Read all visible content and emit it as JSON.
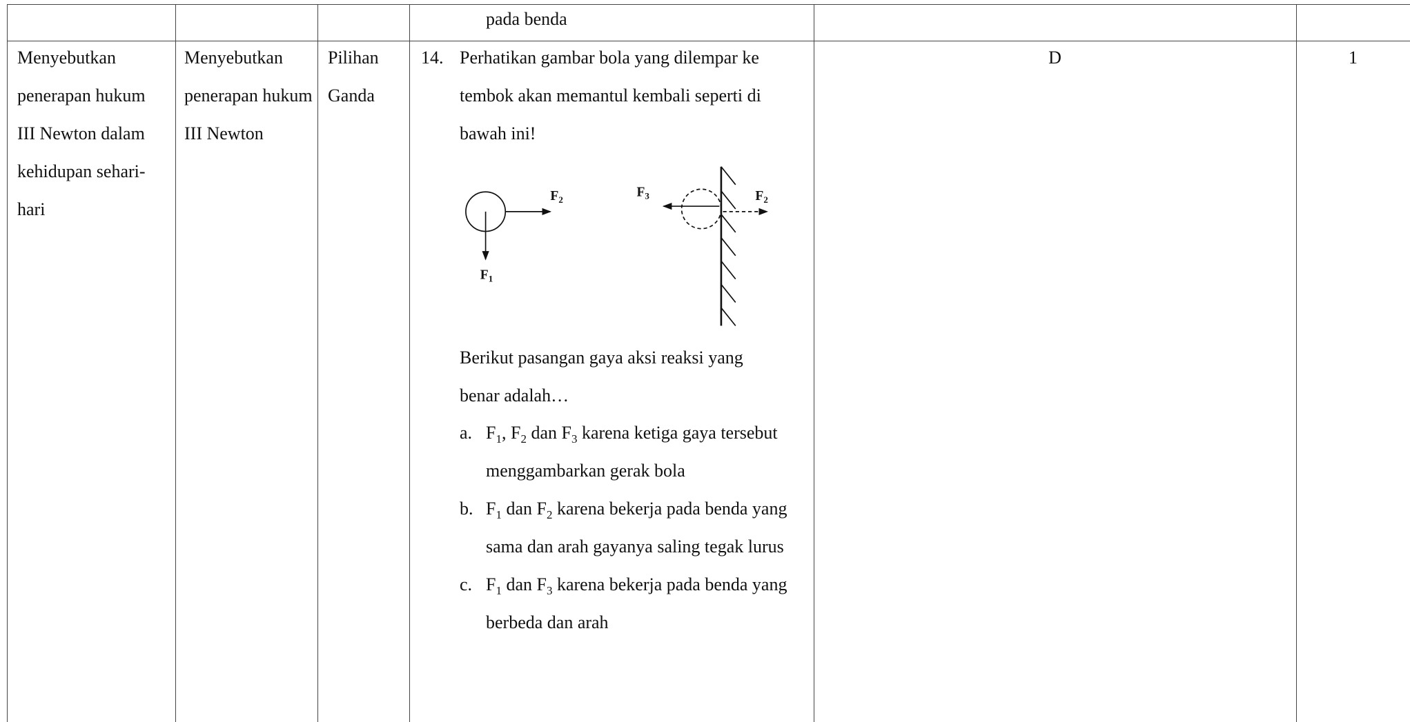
{
  "table": {
    "continuation": "pada benda",
    "row": {
      "objective": "Menyebutkan penerapan hukum III Newton dalam kehidupan sehari-hari",
      "indicator": "Menyebutkan penerapan hukum III Newton",
      "form": "Pilihan Ganda",
      "number": "14.",
      "stem": "Perhatikan gambar bola yang dilempar ke tembok akan memantul kembali seperti di bawah ini!",
      "figure": {
        "labels": [
          {
            "letter": "F",
            "sub": "2"
          },
          {
            "letter": "F",
            "sub": "1"
          },
          {
            "letter": "F",
            "sub": "3"
          },
          {
            "letter": "F",
            "sub": "2"
          }
        ]
      },
      "prompt": "Berikut pasangan gaya aksi reaksi yang benar adalah…",
      "options": [
        {
          "marker": "a.",
          "parts": [
            "F",
            "1",
            ", F",
            "2",
            " dan F",
            "3",
            " karena ketiga gaya tersebut menggambarkan gerak bola"
          ]
        },
        {
          "marker": "b.",
          "parts": [
            "F",
            "1",
            " dan F",
            "2",
            " karena bekerja pada benda yang sama dan arah gayanya saling tegak lurus"
          ]
        },
        {
          "marker": "c.",
          "parts": [
            "F",
            "1",
            " dan F",
            "3",
            " karena bekerja pada benda yang berbeda dan arah"
          ]
        }
      ],
      "key": "D",
      "score": "1"
    }
  }
}
